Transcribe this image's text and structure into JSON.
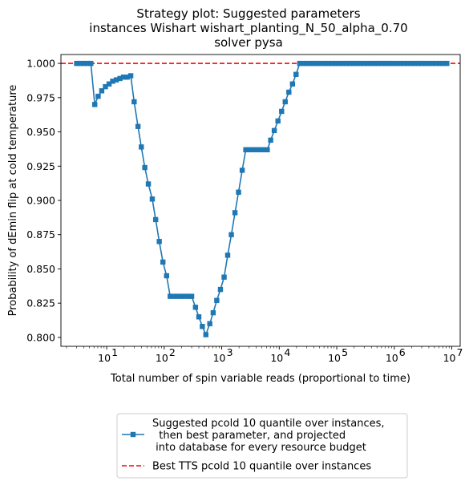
{
  "chart_data": {
    "type": "line",
    "title": [
      "Strategy plot: Suggested parameters",
      "instances Wishart wishart_planting_N_50_alpha_0.70",
      "solver pysa"
    ],
    "xlabel": "Total number of spin variable reads (proportional to time)",
    "ylabel": "Probability of dEmin flip at cold temperature",
    "xscale": "log",
    "xlim": [
      1.6,
      14000000
    ],
    "ylim": [
      0.7935,
      1.0065
    ],
    "xticks": [
      {
        "value": 10,
        "base": "10",
        "exp": "1"
      },
      {
        "value": 100,
        "base": "10",
        "exp": "2"
      },
      {
        "value": 1000,
        "base": "10",
        "exp": "3"
      },
      {
        "value": 10000,
        "base": "10",
        "exp": "4"
      },
      {
        "value": 100000,
        "base": "10",
        "exp": "5"
      },
      {
        "value": 1000000,
        "base": "10",
        "exp": "6"
      },
      {
        "value": 10000000,
        "base": "10",
        "exp": "7"
      }
    ],
    "yticks": [
      {
        "value": 0.8,
        "label": "0.800"
      },
      {
        "value": 0.825,
        "label": "0.825"
      },
      {
        "value": 0.85,
        "label": "0.850"
      },
      {
        "value": 0.875,
        "label": "0.875"
      },
      {
        "value": 0.9,
        "label": "0.900"
      },
      {
        "value": 0.925,
        "label": "0.925"
      },
      {
        "value": 0.95,
        "label": "0.950"
      },
      {
        "value": 0.975,
        "label": "0.975"
      },
      {
        "value": 1.0,
        "label": "1.000"
      }
    ],
    "grid": false,
    "legend_position": "below",
    "series": [
      {
        "name": "Suggested pcold 10 quantile over instances,\n  then best parameter, and projected\n into database for every resource budget",
        "color": "#1f77b4",
        "marker": "square",
        "x": [
          3,
          3.5,
          4,
          4.6,
          5.3,
          6.2,
          7.1,
          8.2,
          9.5,
          11,
          12.7,
          14.7,
          17,
          19.6,
          22.7,
          26.2,
          30,
          35,
          40,
          46,
          53,
          62,
          71,
          82,
          95,
          110,
          127,
          147,
          170,
          196,
          227,
          262,
          300,
          350,
          400,
          460,
          530,
          620,
          710,
          820,
          950,
          1100,
          1270,
          1470,
          1700,
          1960,
          2270,
          2620,
          3000,
          3500,
          4000,
          4600,
          5300,
          6200,
          7100,
          8200,
          9500,
          11000,
          12700,
          14700,
          17000,
          19600,
          22700,
          26200,
          30000,
          35000,
          40000,
          46000,
          53000,
          62000,
          71000,
          82000,
          95000,
          110000,
          127000,
          147000,
          170000,
          196000,
          227000,
          262000,
          300000,
          350000,
          400000,
          460000,
          530000,
          620000,
          710000,
          820000,
          950000,
          1100000,
          1270000,
          1470000,
          1700000,
          1960000,
          2270000,
          2620000,
          3000000,
          3500000,
          4000000,
          4600000,
          5300000,
          6200000,
          7100000,
          8200000
        ],
        "y": [
          1.0,
          1.0,
          1.0,
          1.0,
          1.0,
          0.97,
          0.976,
          0.98,
          0.983,
          0.985,
          0.987,
          0.988,
          0.989,
          0.99,
          0.99,
          0.991,
          0.972,
          0.954,
          0.939,
          0.924,
          0.912,
          0.901,
          0.886,
          0.87,
          0.855,
          0.845,
          0.83,
          0.83,
          0.83,
          0.83,
          0.83,
          0.83,
          0.83,
          0.822,
          0.815,
          0.808,
          0.802,
          0.81,
          0.818,
          0.827,
          0.835,
          0.844,
          0.86,
          0.875,
          0.891,
          0.906,
          0.922,
          0.937,
          0.937,
          0.937,
          0.937,
          0.937,
          0.937,
          0.937,
          0.944,
          0.951,
          0.958,
          0.965,
          0.972,
          0.979,
          0.985,
          0.992,
          1.0,
          1.0,
          1.0,
          1.0,
          1.0,
          1.0,
          1.0,
          1.0,
          1.0,
          1.0,
          1.0,
          1.0,
          1.0,
          1.0,
          1.0,
          1.0,
          1.0,
          1.0,
          1.0,
          1.0,
          1.0,
          1.0,
          1.0,
          1.0,
          1.0,
          1.0,
          1.0,
          1.0,
          1.0,
          1.0,
          1.0,
          1.0,
          1.0,
          1.0,
          1.0,
          1.0,
          1.0,
          1.0,
          1.0,
          1.0,
          1.0,
          1.0
        ]
      },
      {
        "name": "Best TTS pcold 10 quantile over instances",
        "color": "#ff0000",
        "style": "dashed",
        "y_constant": 1.0
      }
    ]
  }
}
